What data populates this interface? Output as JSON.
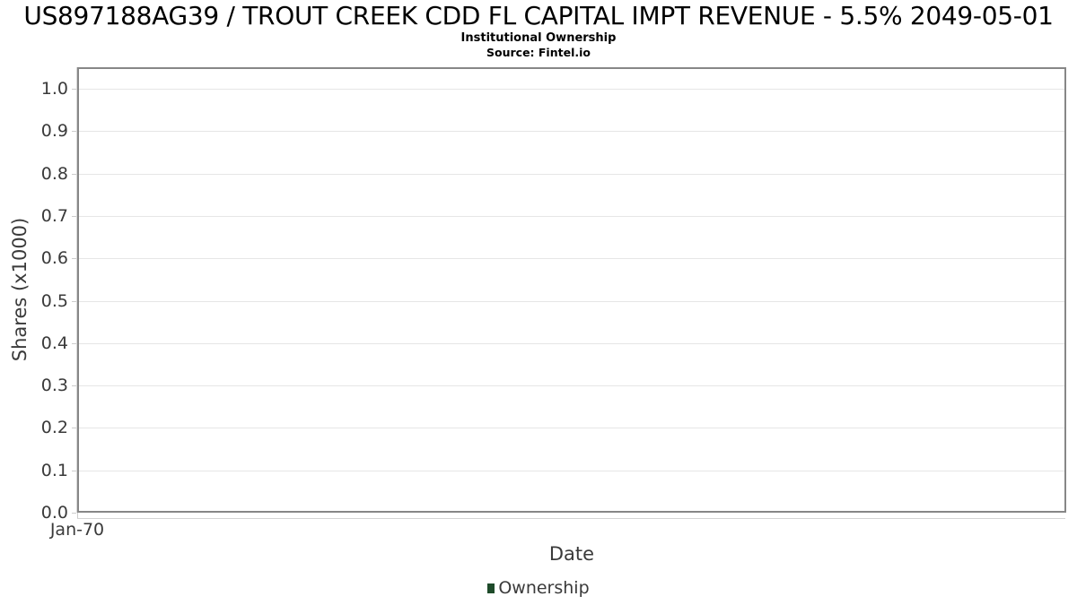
{
  "page": {
    "background": "#ffffff"
  },
  "colors": {
    "plot_border": "#878787",
    "gridline": "#e6e6e6",
    "tick": "#cccccc",
    "axis_text": "#3a3a3a",
    "title_text": "#000000",
    "legend_green": "#1e4b2a"
  },
  "chart_data": {
    "type": "bar",
    "title": "US897188AG39 / TROUT CREEK CDD FL CAPITAL IMPT REVENUE - 5.5% 2049-05-01",
    "subtitle": "Institutional Ownership",
    "source": "Source: Fintel.io",
    "xlabel": "Date",
    "ylabel": "Shares (x1000)",
    "x_ticks": [
      "Jan-70"
    ],
    "y_ticks": [
      "0.0",
      "0.1",
      "0.2",
      "0.3",
      "0.4",
      "0.5",
      "0.6",
      "0.7",
      "0.8",
      "0.9",
      "1.0"
    ],
    "ylim": [
      0.0,
      1.05
    ],
    "grid": true,
    "legend_position": "bottom",
    "series": [
      {
        "name": "Ownership",
        "color": "#1e4b2a",
        "values": []
      }
    ]
  }
}
